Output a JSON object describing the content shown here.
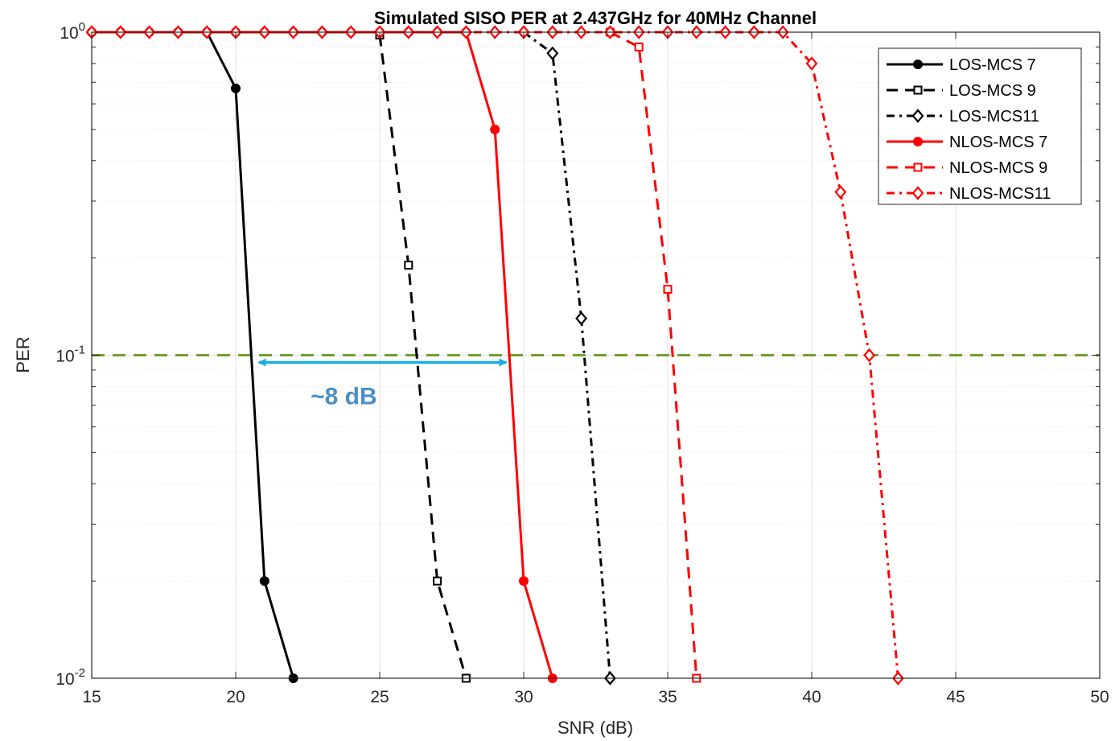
{
  "chart_data": {
    "type": "line",
    "title": "Simulated SISO PER at 2.437GHz for 40MHz Channel",
    "xlabel": "SNR (dB)",
    "ylabel": "PER",
    "xlim": [
      15,
      50
    ],
    "ylim": [
      0.01,
      1
    ],
    "yscale": "log",
    "grid": true,
    "legend_position": "top-right",
    "x_ticks": [
      {
        "value": 15,
        "label": "15"
      },
      {
        "value": 20,
        "label": "20"
      },
      {
        "value": 25,
        "label": "25"
      },
      {
        "value": 30,
        "label": "30"
      },
      {
        "value": 35,
        "label": "35"
      },
      {
        "value": 40,
        "label": "40"
      },
      {
        "value": 45,
        "label": "45"
      },
      {
        "value": 50,
        "label": "50"
      }
    ],
    "y_ticks": [
      {
        "value": 1,
        "base": "10",
        "exp": "0"
      },
      {
        "value": 0.1,
        "base": "10",
        "exp": "-1"
      },
      {
        "value": 0.01,
        "base": "10",
        "exp": "-2"
      }
    ],
    "series": [
      {
        "name": "LOS-MCS 7",
        "color": "#000000",
        "dash": "solid",
        "marker": "filled-circle",
        "x": [
          15,
          16,
          17,
          18,
          19,
          20,
          21,
          22
        ],
        "y": [
          1,
          1,
          1,
          1,
          1,
          0.67,
          0.02,
          0.01
        ]
      },
      {
        "name": "LOS-MCS 9",
        "color": "#000000",
        "dash": "dashed",
        "marker": "open-square",
        "x": [
          25,
          26,
          27,
          28
        ],
        "y": [
          0.98,
          0.19,
          0.02,
          0.01
        ]
      },
      {
        "name": "LOS-MCS11",
        "color": "#000000",
        "dash": "dashdot",
        "marker": "open-diamond",
        "x": [
          30,
          31,
          32,
          33
        ],
        "y": [
          1,
          0.86,
          0.13,
          0.01
        ]
      },
      {
        "name": "NLOS-MCS 7",
        "color": "#ff0000",
        "dash": "solid",
        "marker": "filled-circle",
        "x": [
          15,
          16,
          17,
          18,
          19,
          20,
          21,
          22,
          23,
          24,
          25,
          26,
          27,
          28,
          29,
          30,
          31
        ],
        "y": [
          1,
          1,
          1,
          1,
          1,
          1,
          1,
          1,
          1,
          1,
          1,
          1,
          1,
          1,
          0.5,
          0.02,
          0.01
        ]
      },
      {
        "name": "NLOS-MCS 9",
        "color": "#ff0000",
        "dash": "dashed",
        "marker": "open-square",
        "x": [
          33,
          34,
          35,
          36
        ],
        "y": [
          1,
          0.9,
          0.16,
          0.01
        ]
      },
      {
        "name": "NLOS-MCS11",
        "color": "#ff0000",
        "dash": "dashdot",
        "marker": "open-diamond",
        "x": [
          15,
          16,
          17,
          18,
          19,
          20,
          21,
          22,
          23,
          24,
          25,
          26,
          27,
          28,
          29,
          30,
          31,
          32,
          33,
          34,
          35,
          36,
          37,
          38,
          39,
          40,
          41,
          42,
          43
        ],
        "y": [
          1,
          1,
          1,
          1,
          1,
          1,
          1,
          1,
          1,
          1,
          1,
          1,
          1,
          1,
          1,
          1,
          1,
          1,
          1,
          1,
          1,
          1,
          1,
          1,
          1,
          0.8,
          0.32,
          0.1,
          0.01
        ]
      }
    ],
    "threshold_line": {
      "y": 0.1,
      "color": "#70a030",
      "dash": "dashed"
    },
    "annotation": {
      "text": "~8 dB",
      "arrow_from_x": 20.8,
      "arrow_to_x": 29.4,
      "arrow_y": 0.095,
      "color": "#1aace4",
      "text_color": "#4a90c8"
    }
  }
}
